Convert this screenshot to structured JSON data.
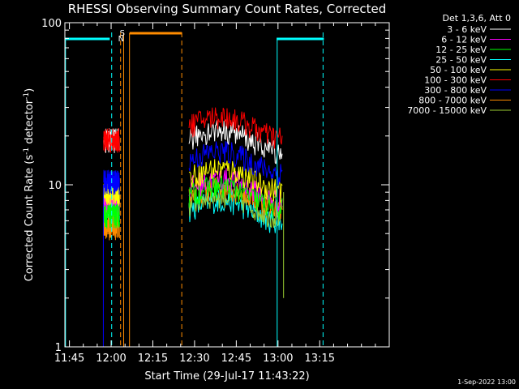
{
  "chart_data": {
    "type": "line",
    "title": "RHESSI Observing Summary Count Rates, Corrected",
    "xlabel": "Start Time (29-Jul-17 11:43:22)",
    "ylabel_main": "Corrected Count Rate (s",
    "ylabel_sup1": "-1",
    "ylabel_mid": " detector",
    "ylabel_sup2": "-1",
    "ylabel_end": ")",
    "y_scale": "log",
    "ylim": [
      1,
      100
    ],
    "xlim_min": [
      703.37,
      820
    ],
    "x_tick_labels": [
      "11:45",
      "12:00",
      "12:15",
      "12:30",
      "12:45",
      "13:00",
      "13:15"
    ],
    "x_ticks_min": [
      705,
      720,
      735,
      750,
      765,
      780,
      795
    ],
    "y_tick_labels": [
      "1",
      "10",
      "100"
    ],
    "y_ticks": [
      1,
      10,
      100
    ],
    "legend_header": "Det 1,3,6, Att 0",
    "footer_date": "1-Sep-2022 13:00",
    "flags": {
      "s_label": "S",
      "n_label": "N"
    },
    "series": [
      {
        "name": "3 - 6 keV",
        "color": "#ffffff",
        "seg1": 19,
        "seg2": 19
      },
      {
        "name": "6 - 12 keV",
        "color": "#ff00ff",
        "seg1": 8,
        "seg2": 9.5
      },
      {
        "name": "12 - 25 keV",
        "color": "#00ff00",
        "seg1": 6.5,
        "seg2": 8.5
      },
      {
        "name": "25 - 50 keV",
        "color": "#00ffff",
        "seg1": 7,
        "seg2": 7
      },
      {
        "name": "50 - 100 keV",
        "color": "#ffff00",
        "seg1": 9,
        "seg2": 11
      },
      {
        "name": "100 - 300 keV",
        "color": "#ff0000",
        "seg1": 19,
        "seg2": 23
      },
      {
        "name": "300 - 800 keV",
        "color": "#0000ff",
        "seg1": 10.5,
        "seg2": 14
      },
      {
        "name": "800 - 7000 keV",
        "color": "#ff8c00",
        "seg1": 5.5,
        "seg2": 8.5
      },
      {
        "name": "7000 - 15000 keV",
        "color": "#9acd32",
        "seg1": 7.5,
        "seg2": 7.5
      }
    ]
  }
}
